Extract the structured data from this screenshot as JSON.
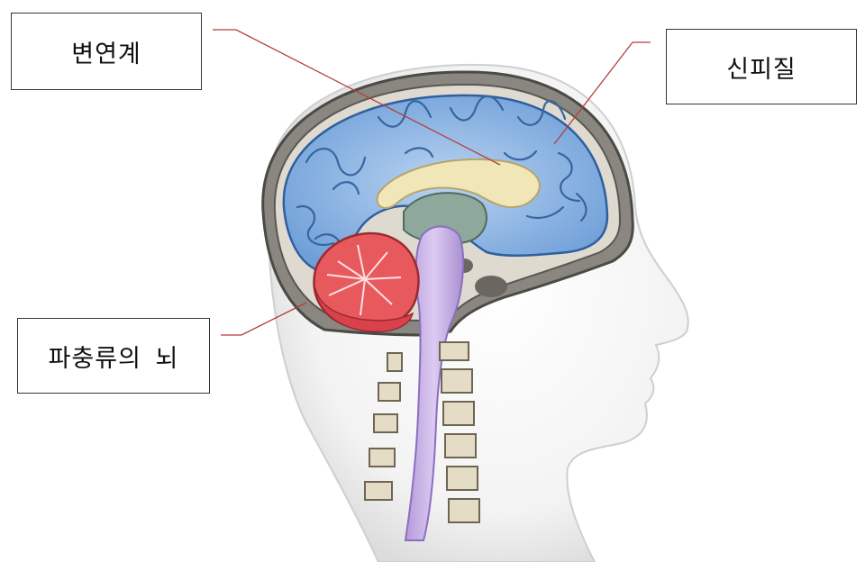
{
  "labels": {
    "limbic": "변연계",
    "neocortex": "신피질",
    "reptilian": "파충류의 뇌"
  },
  "colors": {
    "leader_line": "#b43c3c",
    "cortex": "#8fb7e6",
    "cerebellum": "#e8595e",
    "brainstem": "#c8b0e8",
    "corpus_callosum": "#f1e6b8",
    "skull": "#7c7c76",
    "skin": "#eeeeee"
  }
}
